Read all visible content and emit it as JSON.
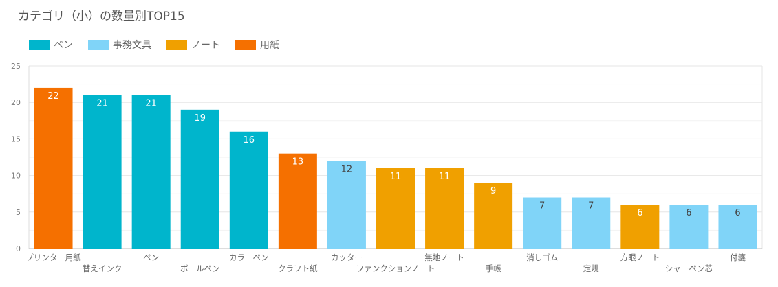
{
  "chart_data": {
    "type": "bar",
    "title": "カテゴリ（小）の数量別TOP15",
    "ylim": [
      0,
      25
    ],
    "yticks": [
      0,
      5,
      10,
      15,
      20,
      25
    ],
    "grid": true,
    "legend_position": "top-left",
    "legend": [
      {
        "name": "ペン",
        "color": "#00b5cc"
      },
      {
        "name": "事務文具",
        "color": "#80d4f8"
      },
      {
        "name": "ノート",
        "color": "#f0a000"
      },
      {
        "name": "用紙",
        "color": "#f57000"
      }
    ],
    "categories": [
      "プリンター用紙",
      "替えインク",
      "ペン",
      "ボールペン",
      "カラーペン",
      "クラフト紙",
      "カッター",
      "ファンクションノート",
      "無地ノート",
      "手帳",
      "消しゴム",
      "定規",
      "方眼ノート",
      "シャーペン芯",
      "付箋"
    ],
    "values": [
      22,
      21,
      21,
      19,
      16,
      13,
      12,
      11,
      11,
      9,
      7,
      7,
      6,
      6,
      6
    ],
    "groups": [
      "用紙",
      "ペン",
      "ペン",
      "ペン",
      "ペン",
      "用紙",
      "事務文具",
      "ノート",
      "ノート",
      "ノート",
      "事務文具",
      "事務文具",
      "ノート",
      "事務文具",
      "事務文具"
    ]
  }
}
